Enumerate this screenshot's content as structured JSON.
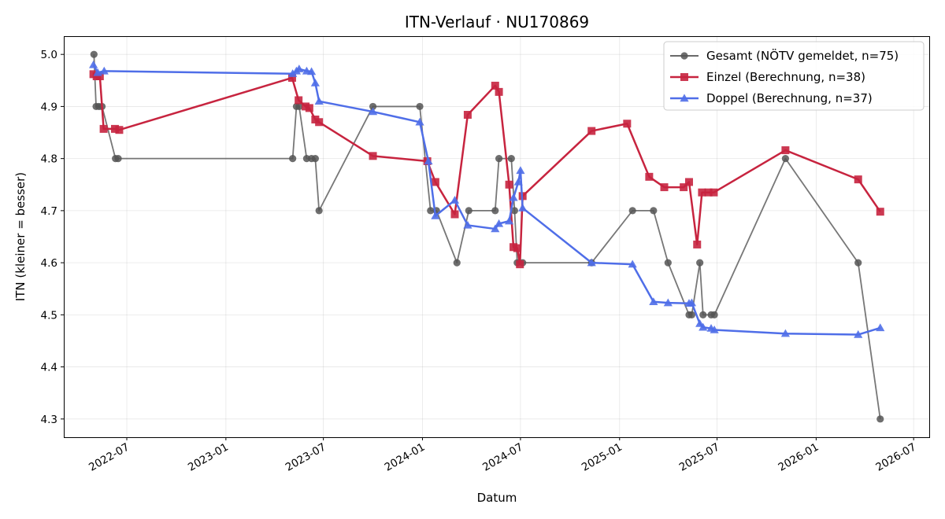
{
  "chart_data": {
    "type": "line",
    "title": "ITN-Verlauf · NU170869",
    "xlabel": "Datum",
    "ylabel": "ITN  (kleiner = besser)",
    "xlim": [
      "2022-03-06",
      "2026-07-30"
    ],
    "ylim": [
      4.265,
      5.035
    ],
    "x_ticks": [
      "2022-07",
      "2023-01",
      "2023-07",
      "2024-01",
      "2024-07",
      "2025-01",
      "2025-07",
      "2026-01",
      "2026-07"
    ],
    "y_ticks": [
      "4.3",
      "4.4",
      "4.5",
      "4.6",
      "4.7",
      "4.8",
      "4.9",
      "5.0"
    ],
    "grid": true,
    "legend_position": "top-right",
    "series": [
      {
        "name": "Gesamt (NÖTV gemeldet, n=75)",
        "color": "#555555",
        "marker": "circle",
        "points": [
          [
            "2022-05-01",
            5.0
          ],
          [
            "2022-05-05",
            4.9
          ],
          [
            "2022-05-10",
            4.9
          ],
          [
            "2022-05-16",
            4.9
          ],
          [
            "2022-06-10",
            4.8
          ],
          [
            "2022-06-15",
            4.8
          ],
          [
            "2023-05-05",
            4.8
          ],
          [
            "2023-05-12",
            4.9
          ],
          [
            "2023-05-17",
            4.9
          ],
          [
            "2023-05-31",
            4.8
          ],
          [
            "2023-06-09",
            4.8
          ],
          [
            "2023-06-16",
            4.8
          ],
          [
            "2023-06-23",
            4.7
          ],
          [
            "2023-10-01",
            4.9
          ],
          [
            "2023-12-27",
            4.9
          ],
          [
            "2024-01-16",
            4.7
          ],
          [
            "2024-01-27",
            4.7
          ],
          [
            "2024-03-05",
            4.6
          ],
          [
            "2024-03-27",
            4.7
          ],
          [
            "2024-05-15",
            4.7
          ],
          [
            "2024-05-22",
            4.8
          ],
          [
            "2024-06-14",
            4.8
          ],
          [
            "2024-06-20",
            4.7
          ],
          [
            "2024-06-25",
            4.6
          ],
          [
            "2024-07-05",
            4.6
          ],
          [
            "2024-11-10",
            4.6
          ],
          [
            "2025-01-25",
            4.7
          ],
          [
            "2025-03-05",
            4.7
          ],
          [
            "2025-04-01",
            4.6
          ],
          [
            "2025-05-10",
            4.5
          ],
          [
            "2025-05-15",
            4.5
          ],
          [
            "2025-05-30",
            4.6
          ],
          [
            "2025-06-05",
            4.5
          ],
          [
            "2025-06-20",
            4.5
          ],
          [
            "2025-06-26",
            4.5
          ],
          [
            "2025-11-05",
            4.8
          ],
          [
            "2026-03-20",
            4.6
          ],
          [
            "2026-04-30",
            4.3
          ]
        ]
      },
      {
        "name": "Einzel (Berechnung, n=38)",
        "color": "#c7243f",
        "marker": "square",
        "points": [
          [
            "2022-04-30",
            4.962
          ],
          [
            "2022-05-06",
            4.958
          ],
          [
            "2022-05-12",
            4.958
          ],
          [
            "2022-05-19",
            4.857
          ],
          [
            "2022-06-09",
            4.857
          ],
          [
            "2022-06-17",
            4.855
          ],
          [
            "2023-05-04",
            4.955
          ],
          [
            "2023-05-16",
            4.912
          ],
          [
            "2023-05-29",
            4.9
          ],
          [
            "2023-06-05",
            4.897
          ],
          [
            "2023-06-16",
            4.875
          ],
          [
            "2023-06-23",
            4.87
          ],
          [
            "2023-10-01",
            4.805
          ],
          [
            "2024-01-10",
            4.795
          ],
          [
            "2024-01-25",
            4.755
          ],
          [
            "2024-03-01",
            4.693
          ],
          [
            "2024-03-25",
            4.884
          ],
          [
            "2024-05-15",
            4.94
          ],
          [
            "2024-05-22",
            4.928
          ],
          [
            "2024-06-10",
            4.75
          ],
          [
            "2024-06-18",
            4.63
          ],
          [
            "2024-06-25",
            4.628
          ],
          [
            "2024-06-30",
            4.597
          ],
          [
            "2024-07-05",
            4.728
          ],
          [
            "2024-11-10",
            4.853
          ],
          [
            "2025-01-15",
            4.867
          ],
          [
            "2025-02-25",
            4.765
          ],
          [
            "2025-03-25",
            4.745
          ],
          [
            "2025-04-30",
            4.745
          ],
          [
            "2025-05-10",
            4.755
          ],
          [
            "2025-05-25",
            4.635
          ],
          [
            "2025-06-03",
            4.735
          ],
          [
            "2025-06-15",
            4.735
          ],
          [
            "2025-06-25",
            4.735
          ],
          [
            "2025-11-05",
            4.816
          ],
          [
            "2026-03-20",
            4.76
          ],
          [
            "2026-04-30",
            4.698
          ]
        ]
      },
      {
        "name": "Doppel (Berechnung, n=37)",
        "color": "#4f6ee8",
        "marker": "triangle",
        "points": [
          [
            "2022-04-30",
            4.98
          ],
          [
            "2022-05-08",
            4.965
          ],
          [
            "2022-05-20",
            4.968
          ],
          [
            "2023-05-05",
            4.963
          ],
          [
            "2023-05-12",
            4.968
          ],
          [
            "2023-05-17",
            4.972
          ],
          [
            "2023-05-31",
            4.968
          ],
          [
            "2023-06-09",
            4.967
          ],
          [
            "2023-06-16",
            4.945
          ],
          [
            "2023-06-23",
            4.91
          ],
          [
            "2023-10-01",
            4.89
          ],
          [
            "2023-12-27",
            4.87
          ],
          [
            "2024-01-12",
            4.795
          ],
          [
            "2024-01-25",
            4.69
          ],
          [
            "2024-03-01",
            4.72
          ],
          [
            "2024-03-25",
            4.672
          ],
          [
            "2024-05-15",
            4.665
          ],
          [
            "2024-05-22",
            4.675
          ],
          [
            "2024-06-10",
            4.68
          ],
          [
            "2024-06-18",
            4.725
          ],
          [
            "2024-06-27",
            4.755
          ],
          [
            "2024-07-01",
            4.777
          ],
          [
            "2024-07-05",
            4.705
          ],
          [
            "2024-11-10",
            4.6
          ],
          [
            "2025-01-25",
            4.597
          ],
          [
            "2025-03-05",
            4.525
          ],
          [
            "2025-04-01",
            4.523
          ],
          [
            "2025-05-10",
            4.522
          ],
          [
            "2025-05-15",
            4.523
          ],
          [
            "2025-05-30",
            4.483
          ],
          [
            "2025-06-05",
            4.476
          ],
          [
            "2025-06-20",
            4.474
          ],
          [
            "2025-06-26",
            4.471
          ],
          [
            "2025-11-05",
            4.464
          ],
          [
            "2026-03-20",
            4.462
          ],
          [
            "2026-04-30",
            4.475
          ]
        ]
      }
    ]
  }
}
